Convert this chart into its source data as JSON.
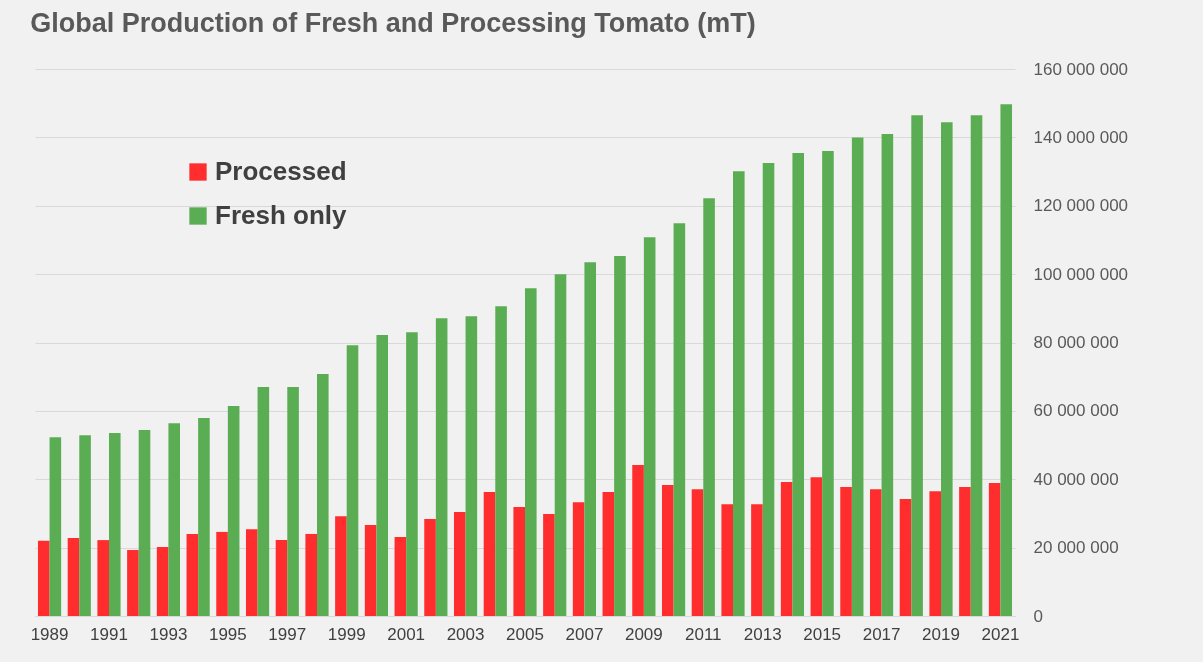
{
  "chart_data": {
    "type": "bar",
    "title": "Global Production of Fresh and Processing Tomato (mT)",
    "categories": [
      "1989",
      null,
      "1991",
      null,
      "1993",
      null,
      "1995",
      null,
      "1997",
      null,
      "1999",
      null,
      "2001",
      null,
      "2003",
      null,
      "2005",
      null,
      "2007",
      null,
      "2009",
      null,
      "2011",
      null,
      "2013",
      null,
      "2015",
      null,
      "2017",
      null,
      "2019",
      null,
      "2021"
    ],
    "series": [
      {
        "name": "Processed",
        "color": "#ff2d2d",
        "values": [
          22000000,
          22800000,
          22200000,
          19300000,
          20200000,
          24000000,
          24600000,
          25400000,
          22200000,
          24000000,
          29200000,
          26600000,
          23100000,
          28400000,
          30400000,
          36300000,
          31900000,
          29800000,
          33300000,
          36300000,
          44200000,
          38300000,
          37100000,
          32700000,
          32700000,
          39200000,
          40600000,
          37700000,
          37100000,
          34200000,
          36500000,
          37700000,
          38900000
        ]
      },
      {
        "name": "Fresh only",
        "color": "#5aad52",
        "values": [
          52300000,
          52900000,
          53500000,
          54400000,
          56400000,
          57900000,
          61400000,
          67000000,
          67000000,
          70800000,
          79200000,
          82200000,
          83000000,
          87100000,
          87700000,
          90600000,
          95900000,
          100000000,
          103500000,
          105300000,
          110800000,
          114900000,
          122200000,
          130100000,
          132500000,
          135400000,
          136000000,
          140000000,
          141000000,
          146500000,
          144400000,
          146500000,
          149700000
        ]
      }
    ],
    "ylim": [
      0,
      160000000
    ],
    "yticks": [
      0,
      20000000,
      40000000,
      60000000,
      80000000,
      100000000,
      120000000,
      140000000,
      160000000
    ],
    "grid": "y",
    "legend": "top left"
  }
}
